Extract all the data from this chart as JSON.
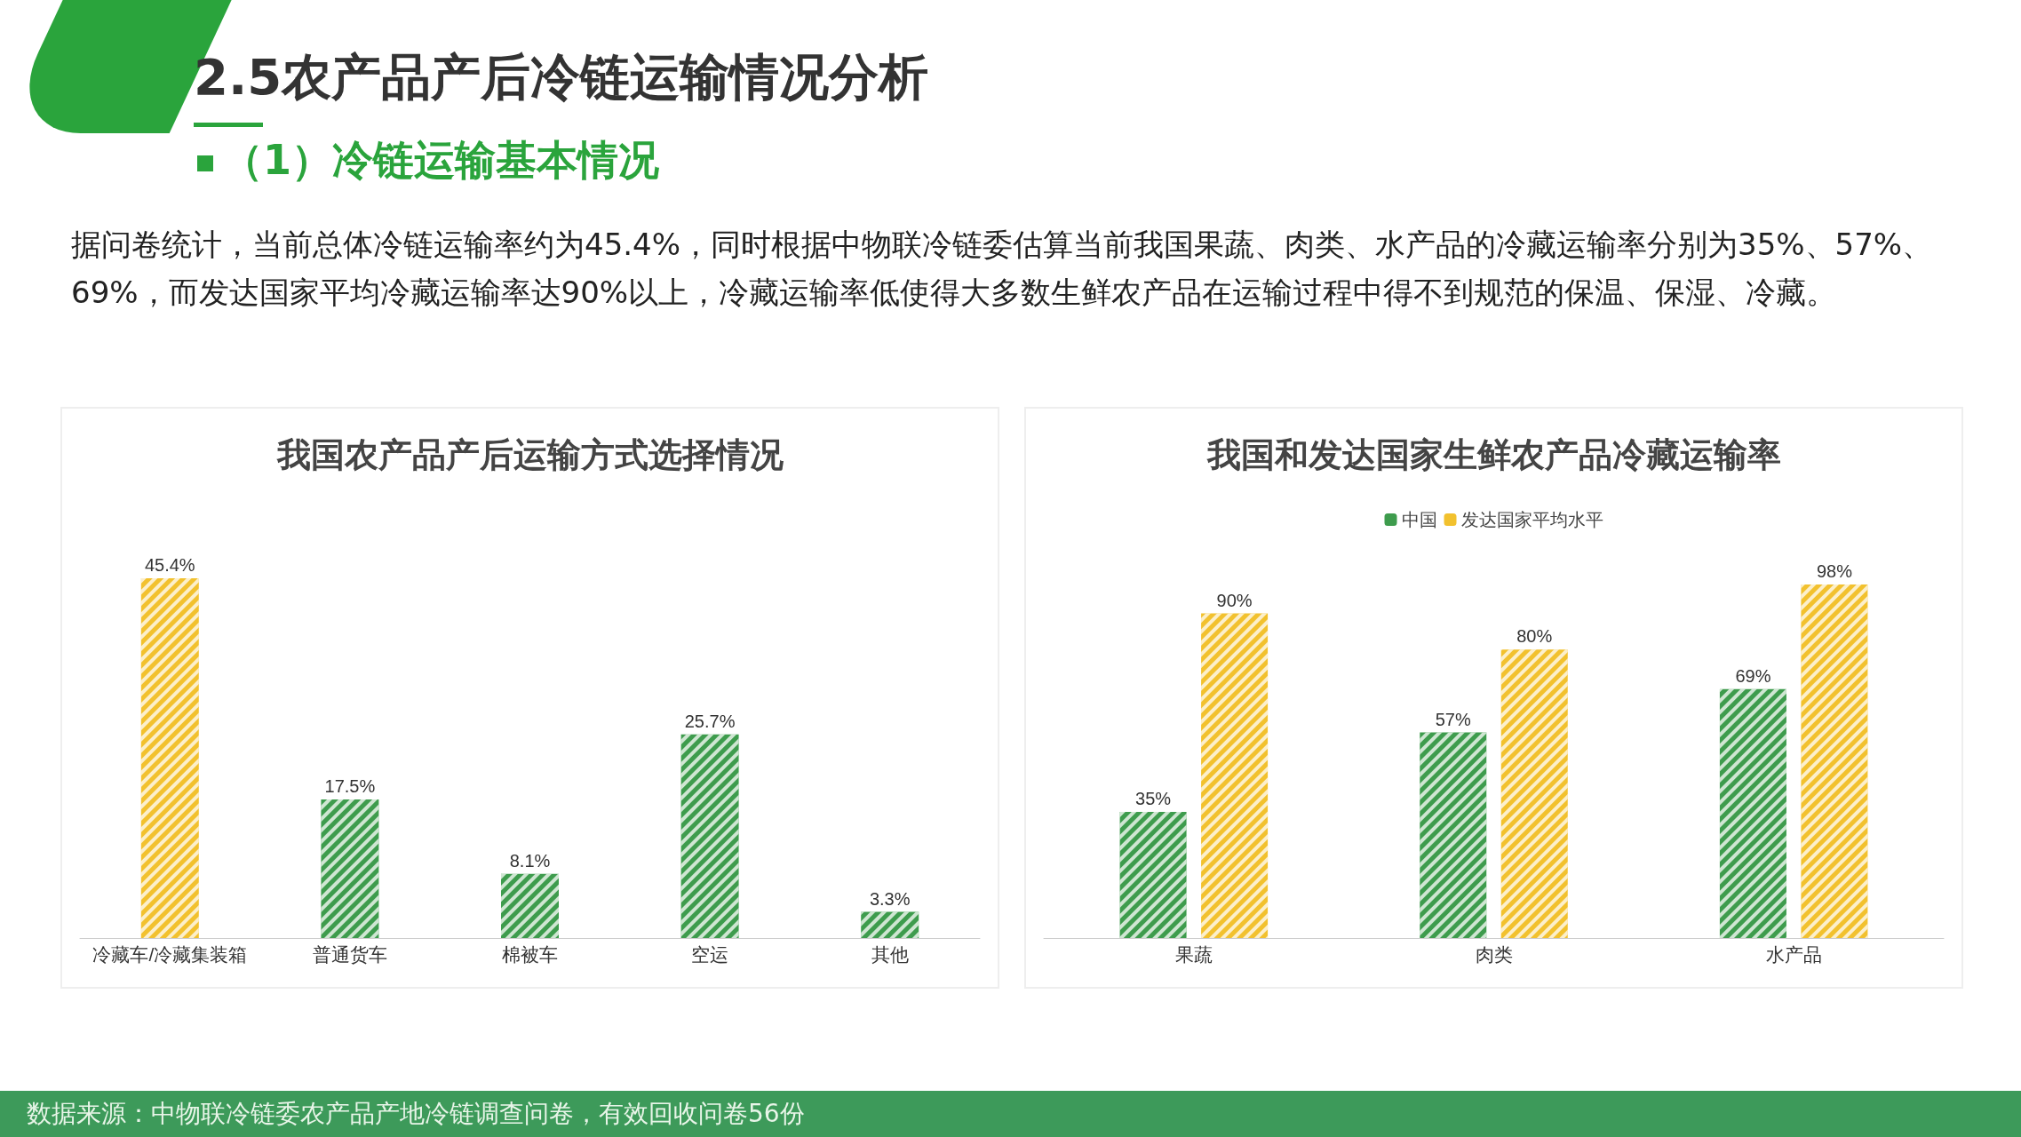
{
  "chart_data": [
    {
      "type": "other",
      "title": "2.5农产品产后冷链运输情况分析",
      "subtitle": "（1）冷链运输基本情况",
      "annotations": [
        "据问卷统计，当前总体冷链运输率约为45.4%，同时根据中物联冷链委估算当前我国果蔬、肉类、水产品的冷藏运输率分别为35%、57%、69%，而发达国家平均冷藏运输率达90%以上，冷藏运输率低使得大多数生鲜农产品在运输过程中得不到规范的保温、保湿、冷藏。",
        "数据来源：中物联冷链委农产品产地冷链调查问卷，有效回收问卷56份"
      ]
    },
    {
      "type": "bar",
      "title": "我国农产品产后运输方式选择情况",
      "categories": [
        "冷藏车/冷藏集装箱",
        "普通货车",
        "棉被车",
        "空运",
        "其他"
      ],
      "values": [
        45.4,
        17.5,
        8.1,
        25.7,
        3.3
      ],
      "colors": [
        "#f2c12e",
        "#3e9c4d",
        "#3e9c4d",
        "#3e9c4d",
        "#3e9c4d"
      ],
      "value_labels": [
        "45.4%",
        "17.5%",
        "8.1%",
        "25.7%",
        "3.3%"
      ],
      "tick_labels": "x",
      "legend": false
    },
    {
      "type": "bar",
      "title": "我国和发达国家生鲜农产品冷藏运输率",
      "categories": [
        "果蔬",
        "肉类",
        "水产品"
      ],
      "series": [
        {
          "name": "中国",
          "color": "#3e9c4d",
          "values": [
            35,
            57,
            69
          ],
          "value_labels": [
            "35%",
            "57%",
            "69%"
          ]
        },
        {
          "name": "发达国家平均水平",
          "color": "#f2c12e",
          "values": [
            90,
            80,
            98
          ],
          "value_labels": [
            "90%",
            "80%",
            "98%"
          ]
        }
      ],
      "tick_labels": "x",
      "legend": "top"
    }
  ]
}
